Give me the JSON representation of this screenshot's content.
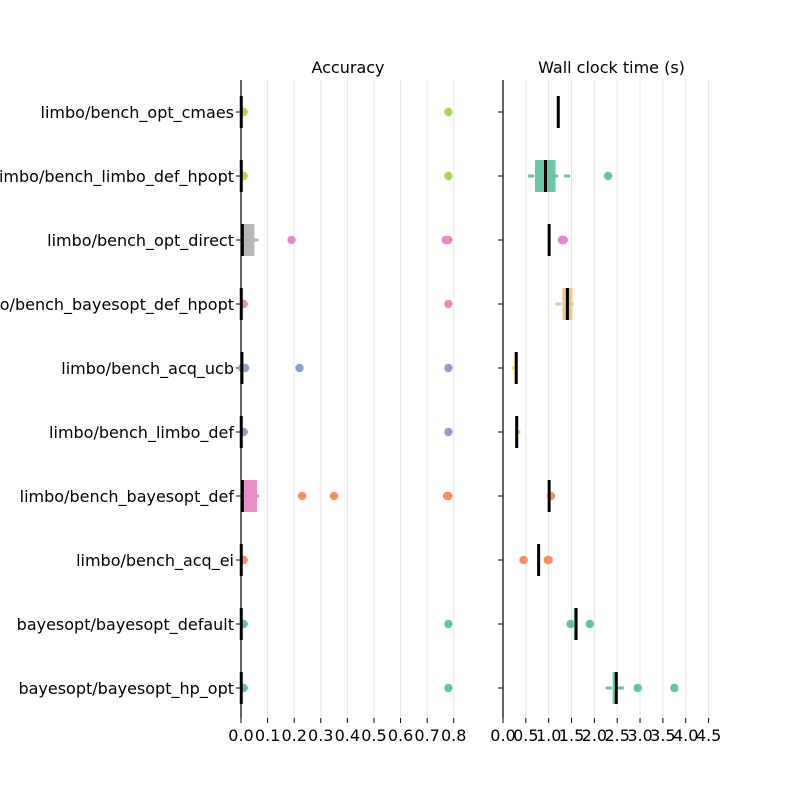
{
  "chart_data": [
    {
      "type": "box",
      "title": "Accuracy",
      "xlim": [
        0.0,
        0.88
      ],
      "xticks": [
        "0.0",
        "0.1",
        "0.2",
        "0.3",
        "0.4",
        "0.5",
        "0.6",
        "0.7",
        "0.8"
      ],
      "grid": "vertical",
      "categories": [
        "limbo/bench_opt_cmaes",
        "limbo/bench_limbo_def_hpopt",
        "limbo/bench_opt_direct",
        "limbo/bench_bayesopt_def_hpopt",
        "limbo/bench_acq_ucb",
        "limbo/bench_limbo_def",
        "limbo/bench_bayesopt_def",
        "limbo/bench_acq_ei",
        "bayesopt/bayesopt_default",
        "bayesopt/bayesopt_hp_opt"
      ],
      "series": [
        {
          "box": [
            0.0,
            0.002
          ],
          "median": 0.001,
          "whiskers": [
            0.0,
            0.004
          ],
          "outliers": [
            0.01,
            0.78
          ],
          "color": "#a6d854"
        },
        {
          "box": [
            0.0,
            0.002
          ],
          "median": 0.001,
          "whiskers": [
            0.0,
            0.004
          ],
          "outliers": [
            0.01,
            0.78
          ],
          "color": "#a6d854"
        },
        {
          "box": [
            0.0,
            0.05
          ],
          "median": 0.005,
          "whiskers": [
            0.0,
            0.065
          ],
          "outliers": [
            0.19,
            0.77,
            0.775,
            0.78
          ],
          "color": "#b3b3b3",
          "outlier_color": "#e78ac3"
        },
        {
          "box": [
            0.0,
            0.002
          ],
          "median": 0.001,
          "whiskers": [
            0.0,
            0.004
          ],
          "outliers": [
            0.01,
            0.78
          ],
          "color": "#e78ac3"
        },
        {
          "box": [
            0.0,
            0.01
          ],
          "median": 0.003,
          "whiskers": [
            0.0,
            0.015
          ],
          "outliers": [
            0.005,
            0.015,
            0.22,
            0.78
          ],
          "color": "#8da0cb"
        },
        {
          "box": [
            0.0,
            0.005
          ],
          "median": 0.001,
          "whiskers": [
            0.0,
            0.008
          ],
          "outliers": [
            0.01,
            0.78
          ],
          "color": "#8da0cb"
        },
        {
          "box": [
            0.0,
            0.06
          ],
          "median": 0.005,
          "whiskers": [
            0.0,
            0.09
          ],
          "outliers": [
            0.23,
            0.35,
            0.775,
            0.78
          ],
          "color": "#e78ac3",
          "outlier_color": "#fc8d62"
        },
        {
          "box": [
            0.0,
            0.005
          ],
          "median": 0.001,
          "whiskers": [
            0.0,
            0.008
          ],
          "outliers": [
            0.01
          ],
          "color": "#fc8d62"
        },
        {
          "box": [
            0.0,
            0.002
          ],
          "median": 0.001,
          "whiskers": [
            0.0,
            0.004
          ],
          "outliers": [
            0.01,
            0.78
          ],
          "color": "#66c2a5"
        },
        {
          "box": [
            0.0,
            0.002
          ],
          "median": 0.001,
          "whiskers": [
            0.0,
            0.004
          ],
          "outliers": [
            0.01,
            0.78
          ],
          "color": "#66c2a5"
        }
      ]
    },
    {
      "type": "box",
      "title": "Wall clock time (s)",
      "xlim": [
        0.0,
        4.75
      ],
      "xticks": [
        "0.0",
        "0.5",
        "1.0",
        "1.5",
        "2.0",
        "2.5",
        "3.0",
        "3.5",
        "4.0",
        "4.5"
      ],
      "grid": "vertical",
      "series": [
        {
          "box": [
            1.2,
            1.22
          ],
          "median": 1.21,
          "whiskers": [
            1.2,
            1.22
          ],
          "outliers": [],
          "color": "#a6d854"
        },
        {
          "box": [
            0.7,
            1.15
          ],
          "median": 0.93,
          "whiskers": [
            0.55,
            1.6
          ],
          "outliers": [
            2.3
          ],
          "color": "#66c2a5"
        },
        {
          "box": [
            1.0,
            1.02
          ],
          "median": 1.01,
          "whiskers": [
            1.0,
            1.02
          ],
          "outliers": [
            1.29,
            1.31,
            1.33
          ],
          "color": "#b3b3b3",
          "outlier_color": "#e78ac3"
        },
        {
          "box": [
            1.3,
            1.52
          ],
          "median": 1.41,
          "whiskers": [
            1.15,
            1.65
          ],
          "outliers": [],
          "color": "#e5c494"
        },
        {
          "box": [
            0.25,
            0.3
          ],
          "median": 0.29,
          "whiskers": [
            0.2,
            0.45
          ],
          "outliers": [],
          "color": "#ffd92f"
        },
        {
          "box": [
            0.28,
            0.32
          ],
          "median": 0.3,
          "whiskers": [
            0.27,
            0.38
          ],
          "outliers": [],
          "color": "#a6d854"
        },
        {
          "box": [
            1.0,
            1.02
          ],
          "median": 1.01,
          "whiskers": [
            1.0,
            1.02
          ],
          "outliers": [
            1.05
          ],
          "color": "#b3b3b3",
          "outlier_color": "#fc8d62"
        },
        {
          "box": [
            0.77,
            0.79
          ],
          "median": 0.78,
          "whiskers": [
            0.77,
            0.79
          ],
          "outliers": [
            0.45,
            0.98,
            1.0
          ],
          "color": "#fc8d62"
        },
        {
          "box": [
            1.55,
            1.62
          ],
          "median": 1.6,
          "whiskers": [
            1.55,
            1.62
          ],
          "outliers": [
            1.48,
            1.9
          ],
          "color": "#66c2a5"
        },
        {
          "box": [
            2.4,
            2.5
          ],
          "median": 2.48,
          "whiskers": [
            2.25,
            2.65
          ],
          "outliers": [
            2.95,
            3.75
          ],
          "color": "#66c2a5"
        }
      ]
    }
  ]
}
